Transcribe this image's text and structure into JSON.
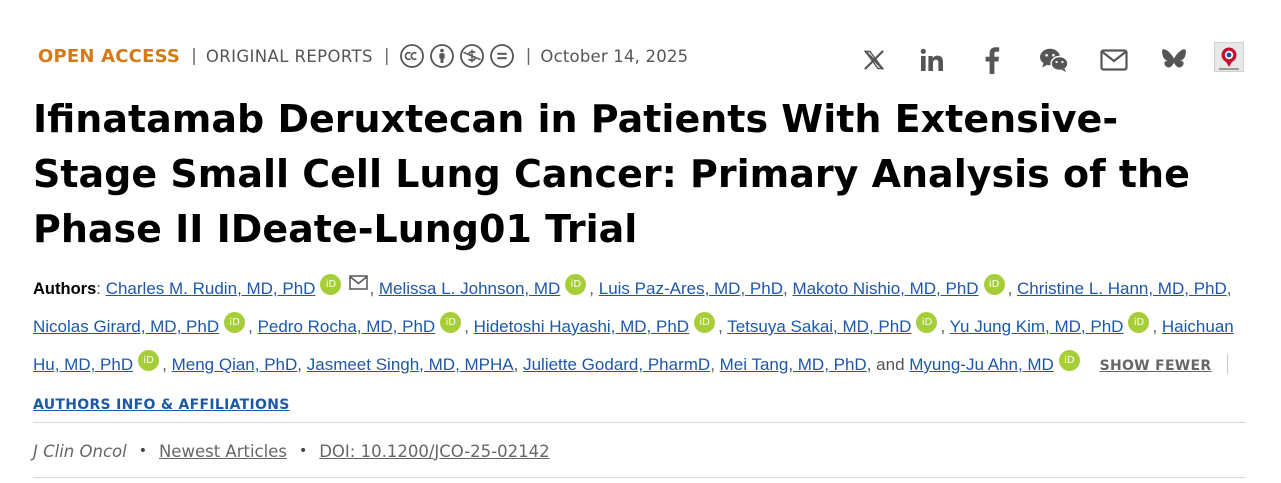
{
  "article_meta": {
    "access": "OPEN ACCESS",
    "separator": "|",
    "section": "ORIGINAL REPORTS",
    "license_icons": [
      "cc-icon",
      "attribution-icon",
      "noncommercial-icon",
      "noderivatives-icon"
    ],
    "date": "October 14, 2025"
  },
  "share_icons": [
    "x-icon",
    "linkedin-icon",
    "facebook-icon",
    "wechat-icon",
    "email-icon",
    "bluesky-icon",
    "mendeley-icon"
  ],
  "title": "Ifinatamab Deruxtecan in Patients With Extensive-Stage Small Cell Lung Cancer: Primary Analysis of the Phase II IDeate-Lung01 Trial",
  "authors_section": {
    "label": "Authors",
    "colon": ": ",
    "orcid_text": "iD",
    "conjunction": ", and ",
    "authors": [
      "Charles M. Rudin, MD, PhD",
      "Melissa L. Johnson, MD",
      "Luis Paz-Ares, MD, PhD",
      "Makoto Nishio, MD, PhD",
      "Christine L. Hann, MD, PhD",
      "Nicolas Girard, MD, PhD",
      "Pedro Rocha, MD, PhD",
      "Hidetoshi Hayashi, MD, PhD",
      "Tetsuya Sakai, MD, PhD",
      "Yu Jung Kim, MD, PhD",
      "Haichuan Hu, MD, PhD",
      "Meng Qian, PhD",
      "Jasmeet Singh, MD, MPHA",
      "Juliette Godard, PharmD",
      "Mei Tang, MD, PhD",
      "Myung-Ju Ahn, MD"
    ],
    "show_fewer": "SHOW FEWER",
    "affiliations": "AUTHORS INFO & AFFILIATIONS"
  },
  "citation": {
    "journal": "J Clin Oncol",
    "bullet": "•",
    "category": "Newest Articles",
    "doi": "DOI: 10.1200/JCO-25-02142"
  },
  "colors": {
    "open_access": "#d57a17",
    "link": "#1d58a8",
    "orcid": "#a6ce39",
    "muted_text": "#555555"
  }
}
